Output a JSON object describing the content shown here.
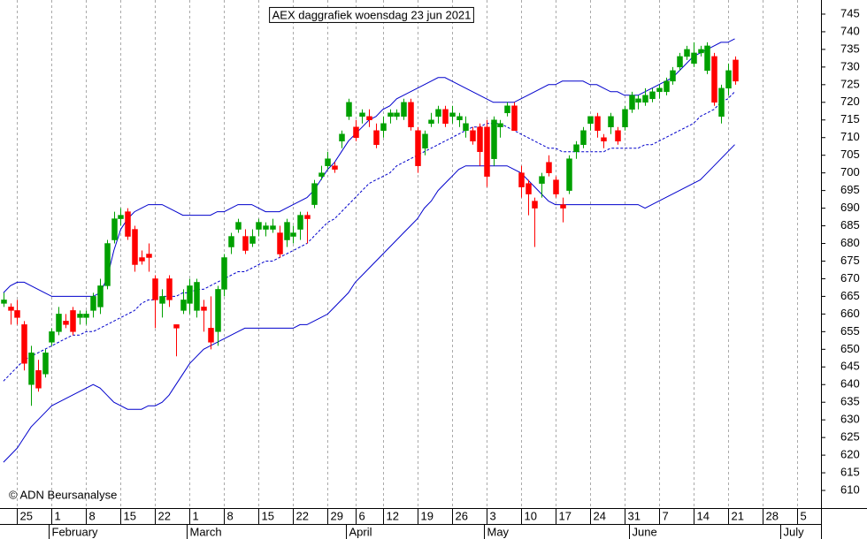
{
  "chart_data": {
    "type": "candlestick",
    "title": "AEX daggrafiek woensdag 23 jun 2021",
    "copyright": "© ADN Beursanalyse",
    "up_color": "#00a000",
    "down_color": "#ff0000",
    "grid": true,
    "ylim": [
      605,
      749
    ],
    "yticks": [
      610,
      615,
      620,
      625,
      630,
      635,
      640,
      645,
      650,
      655,
      660,
      665,
      670,
      675,
      680,
      685,
      690,
      695,
      700,
      705,
      710,
      715,
      720,
      725,
      730,
      735,
      740,
      745
    ],
    "categories": [
      null,
      null,
      "25",
      null,
      null,
      null,
      null,
      "1",
      null,
      null,
      null,
      null,
      "8",
      null,
      null,
      null,
      null,
      "15",
      null,
      null,
      null,
      null,
      "22",
      null,
      null,
      null,
      null,
      "1",
      null,
      null,
      null,
      null,
      "8",
      null,
      null,
      null,
      null,
      "15",
      null,
      null,
      null,
      null,
      "22",
      null,
      null,
      null,
      null,
      "29",
      null,
      null,
      null,
      "6",
      null,
      null,
      null,
      "12",
      null,
      null,
      null,
      null,
      "19",
      null,
      null,
      null,
      null,
      "26",
      null,
      null,
      null,
      null,
      "3",
      null,
      null,
      null,
      null,
      "10",
      null,
      null,
      null,
      null,
      "17",
      null,
      null,
      null,
      null,
      "24",
      null,
      null,
      null,
      null,
      "31",
      null,
      null,
      null,
      null,
      "7",
      null,
      null,
      null,
      null,
      "14",
      null,
      null,
      null,
      null,
      "21",
      null,
      null,
      null,
      null,
      "28",
      null,
      null,
      null,
      null,
      "5",
      null,
      null,
      null
    ],
    "months": [
      {
        "value": 7,
        "label": "February"
      },
      {
        "value": 27,
        "label": "March"
      },
      {
        "value": 50,
        "label": "April"
      },
      {
        "value": 70,
        "label": "May"
      },
      {
        "value": 91,
        "label": "June"
      },
      {
        "value": 113,
        "label": "July"
      }
    ],
    "open": [
      663,
      662,
      661,
      657,
      640,
      644,
      643,
      652,
      655,
      658,
      661,
      659,
      659,
      661,
      662,
      668,
      681,
      687,
      689,
      684,
      676,
      677,
      670,
      663,
      670,
      657,
      661,
      663,
      661,
      662,
      656,
      655,
      667,
      679,
      684,
      682,
      680,
      684,
      684,
      684,
      683,
      681,
      682,
      684,
      688,
      691,
      699,
      702,
      702,
      709,
      716,
      713,
      716,
      716,
      712,
      712,
      716,
      716,
      716,
      720,
      712,
      707,
      714,
      716,
      718,
      716,
      715,
      712,
      712,
      713,
      713,
      704,
      713,
      717,
      719,
      700,
      697,
      692,
      697,
      703,
      698,
      691,
      695,
      706,
      708,
      714,
      716,
      710,
      713,
      712,
      713,
      718,
      720,
      720,
      721,
      723,
      723,
      726,
      730,
      733,
      731,
      734,
      729,
      733,
      716,
      724,
      732,
      null,
      null,
      null,
      null,
      null,
      null,
      null,
      null,
      null,
      null,
      null,
      null
    ],
    "high": [
      666,
      663,
      664,
      658,
      651,
      647,
      650,
      656,
      662,
      660,
      662,
      661,
      661,
      666,
      670,
      681,
      689,
      690,
      690,
      685,
      678,
      680,
      671,
      667,
      671,
      657,
      667,
      670,
      670,
      664,
      665,
      668,
      677,
      683,
      687,
      684,
      684,
      687,
      686,
      687,
      685,
      687,
      685,
      689,
      689,
      698,
      702,
      706,
      703,
      712,
      721,
      715,
      718,
      718,
      714,
      716,
      718,
      718,
      721,
      721,
      713,
      712,
      717,
      719,
      719,
      719,
      717,
      716,
      713,
      714,
      715,
      716,
      715,
      720,
      720,
      702,
      698,
      693,
      700,
      705,
      699,
      693,
      705,
      709,
      713,
      716,
      717,
      711,
      717,
      713,
      719,
      723,
      722,
      724,
      724,
      725,
      727,
      730,
      734,
      736,
      737,
      736,
      737,
      734,
      725,
      731,
      733,
      null,
      null,
      null,
      null,
      null,
      null,
      null,
      null,
      null,
      null,
      null,
      null
    ],
    "low": [
      662,
      657,
      657,
      644,
      634,
      638,
      642,
      651,
      654,
      656,
      654,
      657,
      657,
      659,
      660,
      667,
      680,
      685,
      681,
      672,
      674,
      672,
      656,
      659,
      662,
      648,
      660,
      660,
      659,
      655,
      650,
      651,
      665,
      677,
      683,
      677,
      679,
      682,
      682,
      683,
      676,
      679,
      680,
      681,
      680,
      690,
      698,
      701,
      700,
      707,
      715,
      709,
      714,
      713,
      707,
      710,
      714,
      715,
      715,
      712,
      700,
      705,
      713,
      714,
      713,
      714,
      713,
      710,
      708,
      702,
      696,
      702,
      710,
      716,
      712,
      693,
      688,
      679,
      693,
      699,
      693,
      686,
      694,
      704,
      707,
      712,
      710,
      707,
      711,
      708,
      712,
      717,
      718,
      719,
      720,
      721,
      722,
      725,
      729,
      732,
      730,
      733,
      728,
      719,
      714,
      722,
      725,
      null,
      null,
      null,
      null,
      null,
      null,
      null,
      null,
      null,
      null,
      null,
      null
    ],
    "close": [
      664,
      661,
      659,
      646,
      649,
      639,
      649,
      655,
      660,
      657,
      655,
      660,
      660,
      665,
      668,
      680,
      687,
      688,
      682,
      674,
      675,
      676,
      664,
      665,
      664,
      656,
      664,
      668,
      669,
      661,
      652,
      667,
      676,
      682,
      686,
      678,
      682,
      686,
      685,
      685,
      677,
      686,
      683,
      688,
      687,
      697,
      700,
      704,
      701,
      711,
      720,
      710,
      717,
      715,
      708,
      714,
      717,
      717,
      720,
      713,
      702,
      711,
      715,
      718,
      714,
      717,
      716,
      714,
      709,
      706,
      699,
      715,
      714,
      719,
      712,
      696,
      694,
      690,
      699,
      700,
      694,
      690,
      704,
      708,
      712,
      716,
      712,
      709,
      716,
      709,
      718,
      722,
      721,
      722,
      723,
      724,
      726,
      729,
      733,
      735,
      734,
      735,
      736,
      720,
      724,
      729,
      726,
      null,
      null,
      null,
      null,
      null,
      null,
      null,
      null,
      null,
      null,
      null,
      null
    ],
    "bands": [
      {
        "color": "#0000cc",
        "style": "solid",
        "values": [
          666,
          668,
          669,
          669,
          668,
          667,
          666,
          665,
          665,
          665,
          665,
          665,
          665,
          665,
          666,
          670,
          678,
          684,
          687,
          689,
          690,
          691,
          691,
          691,
          690,
          689,
          688,
          688,
          688,
          688,
          688,
          689,
          689,
          690,
          691,
          691,
          691,
          690,
          689,
          689,
          689,
          690,
          691,
          692,
          693,
          695,
          698,
          701,
          703,
          706,
          709,
          711,
          713,
          715,
          716,
          718,
          719,
          721,
          722,
          723,
          724,
          725,
          726,
          727,
          727,
          726,
          725,
          724,
          723,
          722,
          721,
          720,
          720,
          720,
          720,
          721,
          722,
          723,
          724,
          725,
          725,
          726,
          726,
          726,
          726,
          725,
          725,
          724,
          723,
          723,
          722,
          722,
          722,
          723,
          724,
          725,
          726,
          727,
          729,
          731,
          733,
          734,
          735,
          736,
          737,
          737,
          738,
          null,
          null,
          null,
          null,
          null,
          null,
          null,
          null,
          null,
          null,
          null,
          null
        ]
      },
      {
        "color": "#0000cc",
        "style": "dashed",
        "values": [
          641,
          643,
          645,
          647,
          648,
          649,
          650,
          651,
          652,
          653,
          654,
          654,
          655,
          655,
          656,
          657,
          658,
          659,
          660,
          661,
          663,
          664,
          664,
          665,
          665,
          665,
          666,
          666,
          667,
          667,
          668,
          669,
          670,
          671,
          672,
          672,
          673,
          674,
          675,
          675,
          676,
          677,
          678,
          679,
          680,
          682,
          684,
          686,
          687,
          689,
          691,
          693,
          695,
          697,
          698,
          699,
          700,
          702,
          703,
          704,
          705,
          706,
          707,
          708,
          709,
          710,
          711,
          712,
          713,
          713,
          714,
          714,
          714,
          713,
          712,
          711,
          710,
          709,
          708,
          707,
          707,
          706,
          706,
          706,
          706,
          706,
          706,
          706,
          707,
          707,
          707,
          707,
          707,
          708,
          708,
          709,
          710,
          711,
          712,
          713,
          714,
          716,
          717,
          718,
          720,
          721,
          723,
          null,
          null,
          null,
          null,
          null,
          null,
          null,
          null,
          null,
          null,
          null,
          null
        ]
      },
      {
        "color": "#0000cc",
        "style": "solid",
        "values": [
          618,
          620,
          622,
          625,
          628,
          630,
          632,
          634,
          635,
          636,
          637,
          638,
          639,
          640,
          639,
          637,
          635,
          634,
          633,
          633,
          633,
          634,
          634,
          635,
          637,
          640,
          643,
          646,
          648,
          650,
          651,
          652,
          653,
          654,
          655,
          656,
          656,
          656,
          656,
          656,
          656,
          656,
          656,
          657,
          657,
          658,
          659,
          660,
          662,
          664,
          666,
          669,
          671,
          673,
          675,
          677,
          679,
          681,
          683,
          685,
          687,
          690,
          692,
          695,
          697,
          699,
          701,
          702,
          702,
          702,
          702,
          702,
          702,
          702,
          701,
          700,
          698,
          696,
          694,
          692,
          691,
          691,
          691,
          691,
          691,
          691,
          691,
          691,
          691,
          691,
          691,
          691,
          691,
          690,
          691,
          692,
          693,
          694,
          695,
          696,
          697,
          698,
          700,
          702,
          704,
          706,
          708,
          null,
          null,
          null,
          null,
          null,
          null,
          null,
          null,
          null,
          null,
          null,
          null
        ]
      }
    ]
  }
}
